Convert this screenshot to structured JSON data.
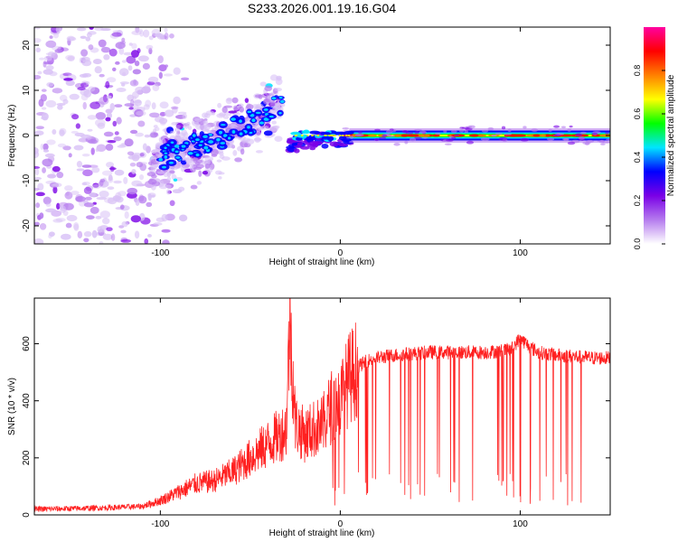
{
  "chart_data": [
    {
      "type": "heatmap",
      "title": "S233.2026.001.19.16.G04",
      "xlabel": "Height of straight line (km)",
      "ylabel": "Frequency (Hz)",
      "xlim": [
        -170,
        150
      ],
      "ylim": [
        -24,
        24
      ],
      "xticks": [
        -100,
        0,
        100
      ],
      "xtick_labels": [
        "-100",
        "0",
        "100"
      ],
      "yticks": [
        -20,
        -10,
        0,
        10,
        20
      ],
      "ytick_labels": [
        "-20",
        "-10",
        "0",
        "10",
        "20"
      ],
      "colorbar": {
        "label": "Normalized spectral amplitude",
        "range": [
          0,
          1
        ],
        "ticks": [
          0,
          0.2,
          0.4,
          0.6,
          0.8
        ],
        "tick_labels": [
          "0.0",
          "0.2",
          "0.4",
          "0.6",
          "0.8"
        ],
        "colors": [
          "#ffffff",
          "#b57bee",
          "#7a00e6",
          "#0000ff",
          "#00e5ff",
          "#00ff00",
          "#ffff00",
          "#ff8000",
          "#ff0000",
          "#ff00a0"
        ]
      },
      "features": {
        "noise_region_x": [
          -170,
          -110
        ],
        "ramp_points": [
          [
            -105,
            -6
          ],
          [
            -90,
            -3
          ],
          [
            -75,
            -2
          ],
          [
            -60,
            1
          ],
          [
            -50,
            3
          ],
          [
            -40,
            5
          ],
          [
            -33,
            7
          ]
        ],
        "stable_line_start_x": -25,
        "stable_line_freq": 0
      }
    },
    {
      "type": "line",
      "xlabel": "Height of straight line (km)",
      "ylabel": "SNR (10 * v/v)",
      "xlim": [
        -170,
        150
      ],
      "ylim": [
        0,
        760
      ],
      "xticks": [
        -100,
        0,
        100
      ],
      "xtick_labels": [
        "-100",
        "0",
        "100"
      ],
      "yticks": [
        0,
        200,
        400,
        600
      ],
      "ytick_labels": [
        "0",
        "200",
        "400",
        "600"
      ],
      "color": "#ff2020",
      "series": [
        {
          "name": "SNR",
          "x": [
            -170,
            -150,
            -130,
            -110,
            -100,
            -90,
            -80,
            -70,
            -60,
            -50,
            -40,
            -30,
            -28,
            -25,
            -20,
            -15,
            -10,
            -5,
            0,
            5,
            10,
            15,
            20,
            30,
            40,
            50,
            60,
            70,
            80,
            90,
            95,
            100,
            105,
            110,
            120,
            130,
            140,
            150
          ],
          "values": [
            20,
            22,
            25,
            30,
            50,
            80,
            110,
            120,
            150,
            200,
            250,
            300,
            700,
            320,
            280,
            300,
            310,
            380,
            400,
            480,
            520,
            540,
            550,
            560,
            565,
            570,
            570,
            570,
            570,
            575,
            580,
            620,
            590,
            570,
            560,
            555,
            550,
            550
          ]
        }
      ]
    }
  ]
}
